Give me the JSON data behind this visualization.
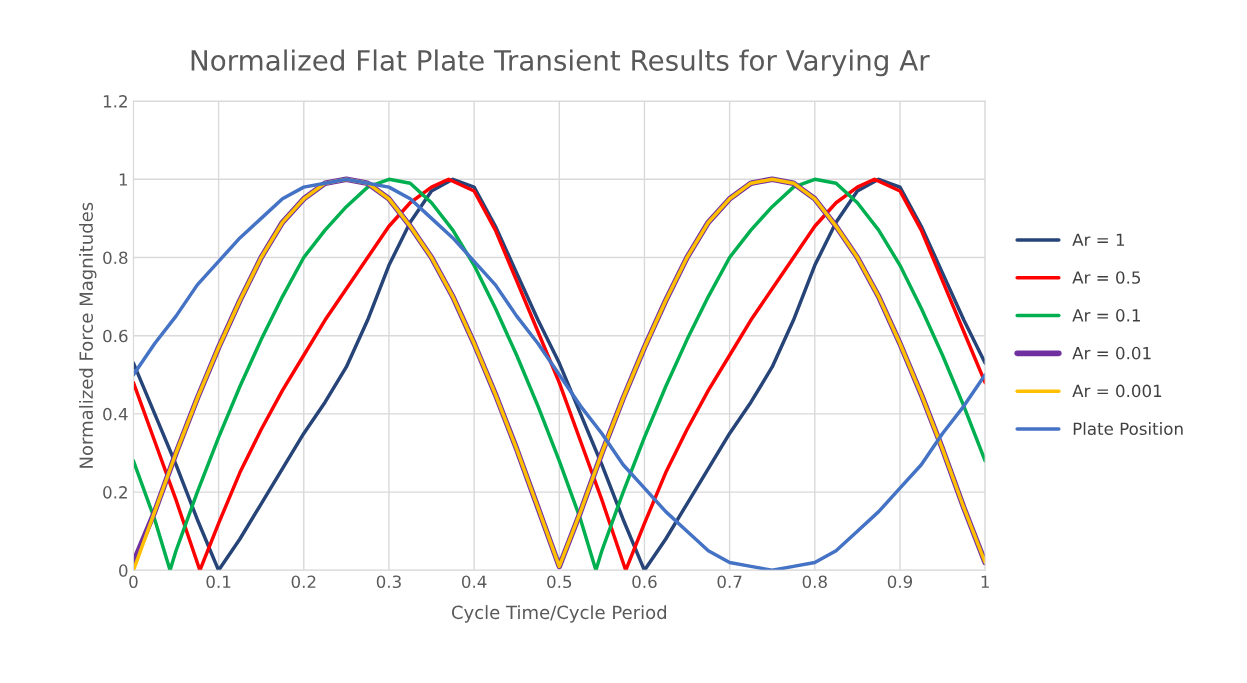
{
  "chart_data": {
    "type": "line",
    "title": "Normalized Flat Plate Transient Results for Varying Ar",
    "xlabel": "Cycle Time/Cycle Period",
    "ylabel": "Normalized Force Magnitudes",
    "x": [
      0,
      0.025,
      0.05,
      0.075,
      0.1,
      0.125,
      0.15,
      0.175,
      0.2,
      0.225,
      0.25,
      0.275,
      0.3,
      0.325,
      0.35,
      0.375,
      0.4,
      0.425,
      0.45,
      0.475,
      0.5,
      0.525,
      0.55,
      0.575,
      0.6,
      0.625,
      0.65,
      0.675,
      0.7,
      0.725,
      0.75,
      0.775,
      0.8,
      0.825,
      0.85,
      0.875,
      0.9,
      0.925,
      0.95,
      0.975,
      1
    ],
    "series": [
      {
        "name": "Ar = 1",
        "color": "#264478",
        "values": [
          0.53,
          0.4,
          0.27,
          0.13,
          0,
          0.08,
          0.17,
          0.26,
          0.35,
          0.43,
          0.52,
          0.64,
          0.78,
          0.89,
          0.97,
          1.0,
          0.98,
          0.88,
          0.76,
          0.64,
          0.53,
          0.4,
          0.27,
          0.13,
          0,
          0.08,
          0.17,
          0.26,
          0.35,
          0.43,
          0.52,
          0.64,
          0.78,
          0.89,
          0.97,
          1.0,
          0.98,
          0.88,
          0.76,
          0.64,
          0.53
        ]
      },
      {
        "name": "Ar = 0.5",
        "color": "#ff0000",
        "x": [
          0,
          0.025,
          0.05,
          0.078,
          0.1,
          0.125,
          0.15,
          0.175,
          0.2,
          0.225,
          0.25,
          0.275,
          0.3,
          0.325,
          0.35,
          0.37,
          0.4,
          0.425,
          0.45,
          0.475,
          0.5,
          0.525,
          0.55,
          0.578,
          0.6,
          0.625,
          0.65,
          0.675,
          0.7,
          0.725,
          0.75,
          0.775,
          0.8,
          0.825,
          0.85,
          0.87,
          0.9,
          0.925,
          0.95,
          0.975,
          1
        ],
        "values": [
          0.48,
          0.33,
          0.18,
          0,
          0.12,
          0.25,
          0.36,
          0.46,
          0.55,
          0.64,
          0.72,
          0.8,
          0.88,
          0.94,
          0.98,
          1.0,
          0.97,
          0.87,
          0.74,
          0.61,
          0.48,
          0.33,
          0.18,
          0,
          0.12,
          0.25,
          0.36,
          0.46,
          0.55,
          0.64,
          0.72,
          0.8,
          0.88,
          0.94,
          0.98,
          1.0,
          0.97,
          0.87,
          0.74,
          0.61,
          0.48
        ]
      },
      {
        "name": "Ar = 0.1",
        "color": "#00b050",
        "x": [
          0,
          0.025,
          0.043,
          0.05,
          0.075,
          0.1,
          0.125,
          0.15,
          0.175,
          0.2,
          0.225,
          0.25,
          0.275,
          0.3,
          0.325,
          0.35,
          0.375,
          0.4,
          0.425,
          0.45,
          0.475,
          0.5,
          0.525,
          0.543,
          0.55,
          0.575,
          0.6,
          0.625,
          0.65,
          0.675,
          0.7,
          0.725,
          0.75,
          0.775,
          0.8,
          0.825,
          0.85,
          0.875,
          0.9,
          0.925,
          0.95,
          0.975,
          1
        ],
        "values": [
          0.28,
          0.13,
          0,
          0.05,
          0.2,
          0.34,
          0.47,
          0.59,
          0.7,
          0.8,
          0.87,
          0.93,
          0.98,
          1.0,
          0.99,
          0.94,
          0.87,
          0.78,
          0.67,
          0.55,
          0.42,
          0.28,
          0.13,
          0,
          0.05,
          0.2,
          0.34,
          0.47,
          0.59,
          0.7,
          0.8,
          0.87,
          0.93,
          0.98,
          1.0,
          0.99,
          0.94,
          0.87,
          0.78,
          0.67,
          0.55,
          0.42,
          0.28
        ]
      },
      {
        "name": "Ar = 0.01",
        "color": "#7030a0",
        "values": [
          0.02,
          0.15,
          0.3,
          0.44,
          0.57,
          0.69,
          0.8,
          0.89,
          0.95,
          0.99,
          1.0,
          0.99,
          0.95,
          0.88,
          0.8,
          0.7,
          0.58,
          0.45,
          0.31,
          0.16,
          0.01,
          0.15,
          0.3,
          0.44,
          0.57,
          0.69,
          0.8,
          0.89,
          0.95,
          0.99,
          1.0,
          0.99,
          0.95,
          0.88,
          0.8,
          0.7,
          0.58,
          0.45,
          0.31,
          0.16,
          0.02
        ]
      },
      {
        "name": "Ar = 0.001",
        "color": "#ffc000",
        "values": [
          0,
          0.15,
          0.3,
          0.44,
          0.57,
          0.69,
          0.8,
          0.89,
          0.95,
          0.99,
          1.0,
          0.99,
          0.95,
          0.88,
          0.8,
          0.7,
          0.58,
          0.45,
          0.31,
          0.16,
          0.01,
          0.15,
          0.3,
          0.44,
          0.57,
          0.69,
          0.8,
          0.89,
          0.95,
          0.99,
          1.0,
          0.99,
          0.95,
          0.88,
          0.8,
          0.7,
          0.58,
          0.45,
          0.31,
          0.16,
          0.02
        ]
      },
      {
        "name": "Plate Position",
        "color": "#4472c4",
        "values": [
          0.5,
          0.58,
          0.65,
          0.73,
          0.79,
          0.85,
          0.9,
          0.95,
          0.98,
          0.99,
          1.0,
          0.99,
          0.98,
          0.95,
          0.9,
          0.85,
          0.79,
          0.73,
          0.65,
          0.58,
          0.5,
          0.42,
          0.35,
          0.27,
          0.21,
          0.15,
          0.1,
          0.05,
          0.02,
          0.01,
          0,
          0.01,
          0.02,
          0.05,
          0.1,
          0.15,
          0.21,
          0.27,
          0.35,
          0.42,
          0.5
        ]
      }
    ],
    "xlim": [
      0,
      1
    ],
    "xticks": [
      0,
      0.1,
      0.2,
      0.3,
      0.4,
      0.5,
      0.6,
      0.7,
      0.8,
      0.9,
      1
    ],
    "ylim": [
      0,
      1.2
    ],
    "yticks": [
      0,
      0.2,
      0.4,
      0.6,
      0.8,
      1,
      1.2
    ],
    "grid": true,
    "legend": "right",
    "marker": "none",
    "line_style": "solid"
  }
}
